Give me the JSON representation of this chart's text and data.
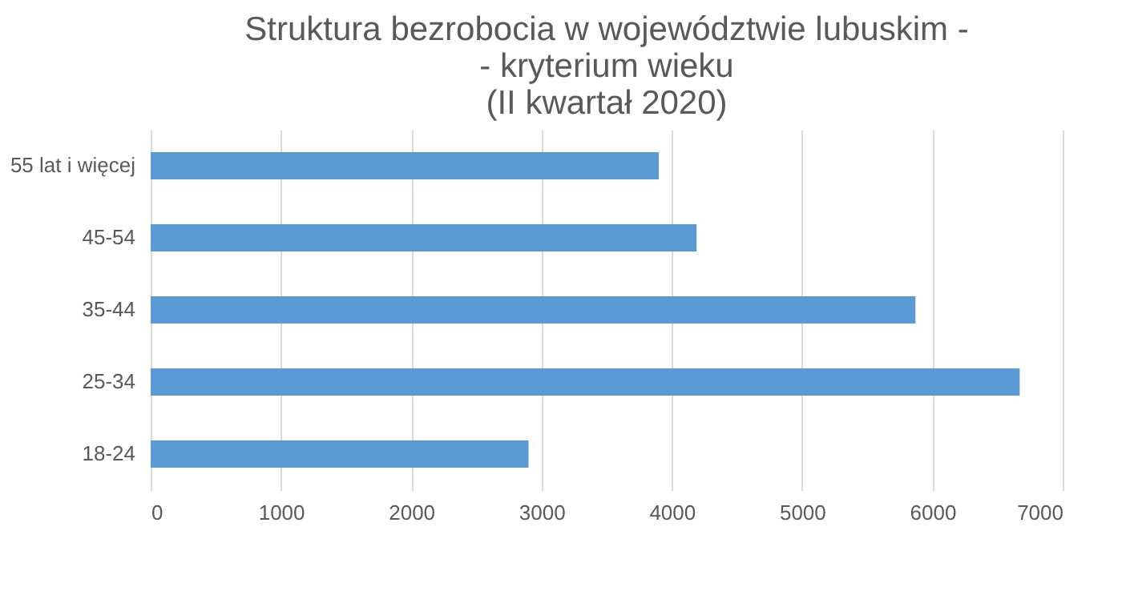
{
  "chart_data": {
    "type": "bar",
    "orientation": "horizontal",
    "title": [
      "Struktura bezrobocia w województwie lubuskim -",
      "- kryterium wieku",
      "(II kwartał 2020)"
    ],
    "categories": [
      "55 lat i więcej",
      "45-54",
      "35-44",
      "25-34",
      "18-24"
    ],
    "values": [
      3900,
      4190,
      5870,
      6670,
      2900
    ],
    "color": "#5b9bd5",
    "xlim": [
      0,
      7000
    ],
    "xticks": [
      0,
      1000,
      2000,
      3000,
      4000,
      5000,
      6000,
      7000
    ],
    "grid": "x"
  }
}
